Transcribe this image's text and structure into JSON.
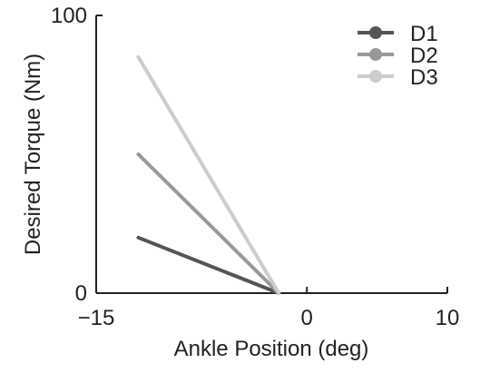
{
  "chart_data": {
    "type": "line",
    "title": "",
    "xlabel": "Ankle Position (deg)",
    "ylabel": "Desired Torque (Nm)",
    "xlim": [
      -15,
      10
    ],
    "ylim": [
      0,
      100
    ],
    "x_ticks": [
      {
        "value": -15,
        "label": "−15"
      },
      {
        "value": 0,
        "label": "0"
      },
      {
        "value": 10,
        "label": "10"
      }
    ],
    "y_ticks": [
      {
        "value": 0,
        "label": "0"
      },
      {
        "value": 100,
        "label": "100"
      }
    ],
    "grid": false,
    "legend_position": "top-right",
    "series": [
      {
        "name": "D1",
        "color": "#555555",
        "points": [
          [
            -12,
            20
          ],
          [
            -2,
            0
          ]
        ]
      },
      {
        "name": "D2",
        "color": "#999999",
        "points": [
          [
            -12,
            50
          ],
          [
            -2,
            0
          ]
        ]
      },
      {
        "name": "D3",
        "color": "#cccccc",
        "points": [
          [
            -12,
            85
          ],
          [
            -2,
            0
          ]
        ]
      }
    ]
  }
}
